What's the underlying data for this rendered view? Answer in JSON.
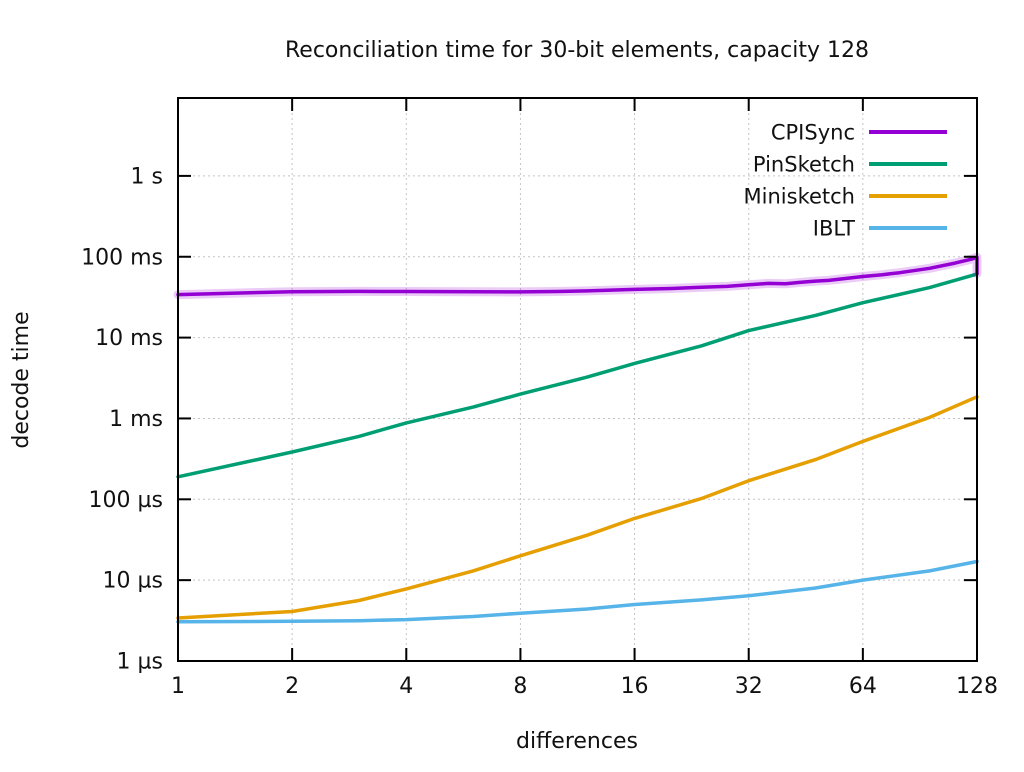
{
  "chart_data": {
    "type": "line",
    "title": "Reconciliation time for 30-bit elements, capacity 128",
    "xlabel": "differences",
    "ylabel": "decode time",
    "x_scale": "log2",
    "y_scale": "log10",
    "grid": true,
    "legend_position": "top-right-inside",
    "x_range": [
      1,
      128
    ],
    "y_unit": "µs",
    "y_range_us": [
      1,
      9000000
    ],
    "x_ticks": [
      1,
      2,
      4,
      8,
      16,
      32,
      64,
      128
    ],
    "y_ticks": [
      {
        "value": 1,
        "label": "1 µs"
      },
      {
        "value": 10,
        "label": "10 µs"
      },
      {
        "value": 100,
        "label": "100 µs"
      },
      {
        "value": 1000,
        "label": "1 ms"
      },
      {
        "value": 10000,
        "label": "10 ms"
      },
      {
        "value": 100000,
        "label": "100 ms"
      },
      {
        "value": 1000000,
        "label": "1 s"
      }
    ],
    "series": [
      {
        "name": "CPISync",
        "color": "#9400d3",
        "halo": true,
        "points_x_us": [
          [
            1,
            34000
          ],
          [
            2,
            37000
          ],
          [
            3,
            37300
          ],
          [
            4,
            37200
          ],
          [
            6,
            37000
          ],
          [
            8,
            36800
          ],
          [
            10,
            37200
          ],
          [
            12,
            37800
          ],
          [
            16,
            39500
          ],
          [
            20,
            40500
          ],
          [
            24,
            42000
          ],
          [
            28,
            43000
          ],
          [
            32,
            45000
          ],
          [
            36,
            46800
          ],
          [
            40,
            46300
          ],
          [
            44,
            48300
          ],
          [
            48,
            50000
          ],
          [
            52,
            51000
          ],
          [
            56,
            53000
          ],
          [
            64,
            57000
          ],
          [
            72,
            60000
          ],
          [
            80,
            63500
          ],
          [
            96,
            72000
          ],
          [
            112,
            83500
          ],
          [
            124,
            93500
          ],
          [
            128,
            98500
          ],
          [
            128,
            62000
          ]
        ]
      },
      {
        "name": "PinSketch",
        "color": "#009e73",
        "halo": false,
        "points_x_us": [
          [
            1,
            190
          ],
          [
            2,
            385
          ],
          [
            3,
            600
          ],
          [
            4,
            880
          ],
          [
            6,
            1380
          ],
          [
            8,
            2000
          ],
          [
            12,
            3250
          ],
          [
            16,
            4800
          ],
          [
            24,
            7900
          ],
          [
            32,
            12200
          ],
          [
            48,
            18800
          ],
          [
            64,
            27000
          ],
          [
            96,
            41500
          ],
          [
            128,
            61000
          ]
        ]
      },
      {
        "name": "Minisketch",
        "color": "#e69f00",
        "halo": false,
        "points_x_us": [
          [
            1,
            3.4
          ],
          [
            2,
            4.1
          ],
          [
            3,
            5.6
          ],
          [
            4,
            7.8
          ],
          [
            6,
            13
          ],
          [
            8,
            20
          ],
          [
            12,
            36
          ],
          [
            16,
            58
          ],
          [
            24,
            102
          ],
          [
            32,
            170
          ],
          [
            48,
            310
          ],
          [
            64,
            520
          ],
          [
            96,
            1030
          ],
          [
            128,
            1850
          ]
        ]
      },
      {
        "name": "IBLT",
        "color": "#56b4e9",
        "halo": false,
        "points_x_us": [
          [
            1,
            3.05
          ],
          [
            2,
            3.1
          ],
          [
            3,
            3.15
          ],
          [
            4,
            3.25
          ],
          [
            6,
            3.55
          ],
          [
            8,
            3.9
          ],
          [
            12,
            4.4
          ],
          [
            16,
            5.0
          ],
          [
            24,
            5.7
          ],
          [
            32,
            6.4
          ],
          [
            48,
            8.0
          ],
          [
            64,
            10.0
          ],
          [
            96,
            13.0
          ],
          [
            128,
            17.0
          ]
        ]
      }
    ]
  }
}
